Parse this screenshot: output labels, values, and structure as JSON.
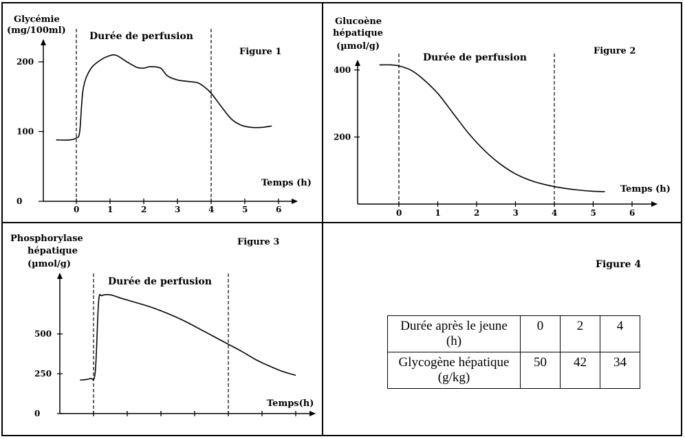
{
  "figure1": {
    "label": "Figure 1",
    "ylabel_line1": "Glycémie",
    "ylabel_line2": "(mg/100ml)",
    "xlabel": "Temps (h)",
    "perfusion_label": "Durée de perfusion"
  },
  "figure2": {
    "label": "Figure 2",
    "ylabel_line1": "Glucoène",
    "ylabel_line2": "hépatique",
    "ylabel_line3": "(µmol/g)",
    "xlabel": "Temps (h)",
    "perfusion_label": "Durée de perfusion"
  },
  "figure3": {
    "label": "Figure 3",
    "ylabel_line1": "Phosphorylase",
    "ylabel_line2": "hépatique",
    "ylabel_line3": "(µmol/g)",
    "xlabel": "Temps(h)",
    "perfusion_label": "Durée de perfusion"
  },
  "figure4": {
    "label": "Figure 4",
    "row1_header": "Durée après le jeune (h)",
    "row2_header": "Glycogène hépatique (g/kg)",
    "durations": [
      "0",
      "2",
      "4"
    ],
    "glycogen": [
      "50",
      "42",
      "34"
    ]
  },
  "chart_data": [
    {
      "type": "line",
      "title": "Figure 1",
      "xlabel": "Temps (h)",
      "ylabel": "Glycémie (mg/100ml)",
      "x_ticks": [
        "0",
        "1",
        "2",
        "3",
        "4",
        "5",
        "6"
      ],
      "y_ticks": [
        "0",
        "100",
        "200"
      ],
      "xlim": [
        -0.7,
        6.5
      ],
      "ylim": [
        0,
        240
      ],
      "perfusion_interval": [
        0,
        4
      ],
      "series": [
        {
          "x": [
            -0.6,
            -0.2,
            0,
            0.1,
            0.2,
            0.4,
            0.7,
            1.0,
            1.2,
            1.5,
            1.8,
            2.0,
            2.2,
            2.5,
            2.7,
            3.0,
            3.3,
            3.6,
            3.8,
            4.0,
            4.3,
            4.6,
            4.9,
            5.2,
            5.5,
            5.8
          ],
          "y": [
            88,
            88,
            91,
            100,
            160,
            188,
            202,
            209,
            209,
            200,
            192,
            191,
            193,
            191,
            180,
            174,
            172,
            170,
            164,
            155,
            136,
            118,
            109,
            106,
            106,
            108
          ]
        }
      ]
    },
    {
      "type": "line",
      "title": "Figure 2",
      "xlabel": "Temps (h)",
      "ylabel": "Glucoène hépatique (µmol/g)",
      "x_ticks": [
        "0",
        "1",
        "2",
        "3",
        "4",
        "5",
        "6"
      ],
      "y_ticks": [
        "200",
        "400"
      ],
      "xlim": [
        -1.0,
        6.5
      ],
      "ylim": [
        0,
        450
      ],
      "perfusion_interval": [
        0,
        4
      ],
      "series": [
        {
          "x": [
            -0.5,
            -0.2,
            0,
            0.3,
            0.6,
            1.0,
            1.4,
            1.8,
            2.2,
            2.6,
            3.0,
            3.4,
            3.8,
            4.2,
            4.6,
            5.0,
            5.3
          ],
          "y": [
            415,
            415,
            412,
            400,
            375,
            330,
            270,
            210,
            160,
            120,
            90,
            70,
            57,
            48,
            42,
            38,
            37
          ]
        }
      ]
    },
    {
      "type": "line",
      "title": "Figure 3",
      "xlabel": "Temps(h)",
      "ylabel": "Phosphorylase hépatique (µmol/g)",
      "x_ticks": [],
      "y_ticks": [
        "0",
        "250",
        "500"
      ],
      "xlim": [
        0,
        8
      ],
      "ylim": [
        0,
        850
      ],
      "perfusion_interval": [
        1,
        5
      ],
      "series": [
        {
          "x": [
            0.6,
            0.9,
            1.05,
            1.15,
            1.25,
            1.5,
            1.8,
            2.2,
            2.6,
            3.0,
            3.4,
            3.8,
            4.2,
            4.6,
            5.0,
            5.4,
            5.8,
            6.2,
            6.6,
            7.0
          ],
          "y": [
            210,
            220,
            260,
            700,
            740,
            745,
            725,
            700,
            675,
            645,
            610,
            570,
            525,
            480,
            435,
            390,
            340,
            300,
            265,
            240
          ]
        }
      ]
    }
  ]
}
